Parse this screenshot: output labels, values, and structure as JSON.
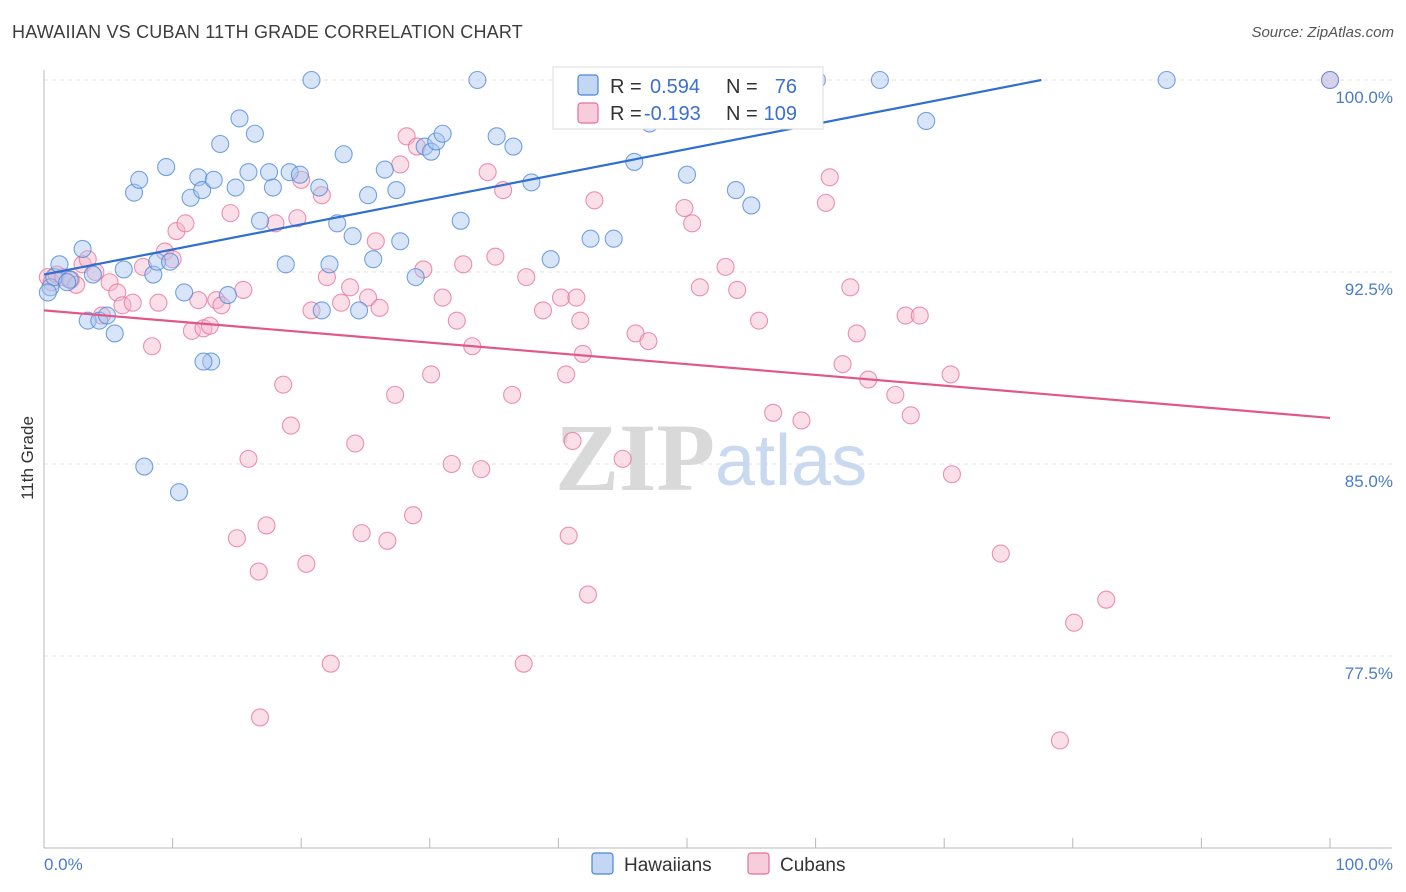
{
  "title": "HAWAIIAN VS CUBAN 11TH GRADE CORRELATION CHART",
  "source": "Source: ZipAtlas.com",
  "watermark": {
    "zip": "ZIP",
    "atlas": "atlas"
  },
  "colors": {
    "hawaiian": "#4a86d8",
    "hawaiian_fill": "#a9c6ef",
    "cuban": "#e56f9a",
    "cuban_fill": "#f5b8cc",
    "axis_text": "#4a7cc9"
  },
  "legend_top": {
    "rows": [
      {
        "r_label": "R =",
        "r_value": "0.594",
        "n_label": "N =",
        "n_value": "76"
      },
      {
        "r_label": "R =",
        "r_value": "-0.193",
        "n_label": "N =",
        "n_value": "109"
      }
    ]
  },
  "legend_bottom": [
    "Hawaiians",
    "Cubans"
  ],
  "chart_data": {
    "type": "scatter",
    "title": "HAWAIIAN VS CUBAN 11TH GRADE CORRELATION CHART",
    "xlabel": "",
    "ylabel": "11th Grade",
    "xlim": [
      0,
      100
    ],
    "ylim": [
      70.0,
      101.4
    ],
    "x_tick_labels": [
      "0.0%",
      "100.0%"
    ],
    "y_ticks": [
      77.5,
      85.0,
      92.5,
      100.0
    ],
    "y_tick_labels": [
      "77.5%",
      "85.0%",
      "92.5%",
      "100.0%"
    ],
    "grid": true,
    "legend_position": "top-center",
    "series": [
      {
        "name": "Hawaiians",
        "R": 0.594,
        "N": 76,
        "trend": [
          [
            0,
            92.4
          ],
          [
            100,
            102.2
          ]
        ],
        "points": [
          [
            0.5,
            91.9
          ],
          [
            0.8,
            92.3
          ],
          [
            1.2,
            92.8
          ],
          [
            2.0,
            92.2
          ],
          [
            3.0,
            93.4
          ],
          [
            3.4,
            90.6
          ],
          [
            3.8,
            92.4
          ],
          [
            4.3,
            90.6
          ],
          [
            4.9,
            90.8
          ],
          [
            5.5,
            90.1
          ],
          [
            6.2,
            92.6
          ],
          [
            7.0,
            95.6
          ],
          [
            7.4,
            96.1
          ],
          [
            7.8,
            84.9
          ],
          [
            8.5,
            92.4
          ],
          [
            8.8,
            92.9
          ],
          [
            9.5,
            96.6
          ],
          [
            9.8,
            92.9
          ],
          [
            10.5,
            83.9
          ],
          [
            10.9,
            91.7
          ],
          [
            11.4,
            95.4
          ],
          [
            12.0,
            96.2
          ],
          [
            12.3,
            95.7
          ],
          [
            13.0,
            89.0
          ],
          [
            13.2,
            96.1
          ],
          [
            13.7,
            97.5
          ],
          [
            14.3,
            91.6
          ],
          [
            14.9,
            95.8
          ],
          [
            15.2,
            98.5
          ],
          [
            15.9,
            96.4
          ],
          [
            16.4,
            97.9
          ],
          [
            16.8,
            94.5
          ],
          [
            17.5,
            96.4
          ],
          [
            17.8,
            95.8
          ],
          [
            18.8,
            92.8
          ],
          [
            19.1,
            96.4
          ],
          [
            19.9,
            96.3
          ],
          [
            20.8,
            100.0
          ],
          [
            21.4,
            95.8
          ],
          [
            21.6,
            91.0
          ],
          [
            22.2,
            92.8
          ],
          [
            22.8,
            94.4
          ],
          [
            23.3,
            97.1
          ],
          [
            24.0,
            93.9
          ],
          [
            24.5,
            91.0
          ],
          [
            25.2,
            95.5
          ],
          [
            25.6,
            93.0
          ],
          [
            26.5,
            96.5
          ],
          [
            27.4,
            95.7
          ],
          [
            27.7,
            93.7
          ],
          [
            28.9,
            92.3
          ],
          [
            29.6,
            97.4
          ],
          [
            30.1,
            97.2
          ],
          [
            30.5,
            97.6
          ],
          [
            31.0,
            97.9
          ],
          [
            32.4,
            94.5
          ],
          [
            33.7,
            100.0
          ],
          [
            35.2,
            97.8
          ],
          [
            36.5,
            97.4
          ],
          [
            37.9,
            96.0
          ],
          [
            39.4,
            93.0
          ],
          [
            42.5,
            93.8
          ],
          [
            44.3,
            93.8
          ],
          [
            45.9,
            96.8
          ],
          [
            47.1,
            98.3
          ],
          [
            50.0,
            96.3
          ],
          [
            53.8,
            95.7
          ],
          [
            55.0,
            95.1
          ],
          [
            60.1,
            100.0
          ],
          [
            65.0,
            100.0
          ],
          [
            68.6,
            98.4
          ],
          [
            87.3,
            100.0
          ],
          [
            100.0,
            100.0
          ],
          [
            0.3,
            91.7
          ],
          [
            1.8,
            92.1
          ],
          [
            12.4,
            89.0
          ]
        ]
      },
      {
        "name": "Cubans",
        "R": -0.193,
        "N": 109,
        "trend": [
          [
            0,
            91.0
          ],
          [
            100,
            86.8
          ]
        ],
        "points": [
          [
            0.3,
            92.3
          ],
          [
            0.6,
            92.1
          ],
          [
            1.0,
            92.4
          ],
          [
            1.5,
            92.3
          ],
          [
            2.1,
            92.2
          ],
          [
            2.5,
            92.0
          ],
          [
            3.0,
            92.8
          ],
          [
            3.4,
            93.0
          ],
          [
            4.0,
            92.5
          ],
          [
            4.5,
            90.8
          ],
          [
            5.1,
            92.1
          ],
          [
            5.7,
            91.7
          ],
          [
            6.1,
            91.2
          ],
          [
            6.9,
            91.3
          ],
          [
            7.7,
            92.7
          ],
          [
            8.4,
            89.6
          ],
          [
            8.9,
            91.3
          ],
          [
            9.4,
            93.3
          ],
          [
            10.0,
            93.0
          ],
          [
            10.3,
            94.1
          ],
          [
            11.0,
            94.4
          ],
          [
            11.5,
            90.2
          ],
          [
            12.0,
            91.4
          ],
          [
            12.4,
            90.3
          ],
          [
            12.9,
            90.4
          ],
          [
            13.4,
            91.4
          ],
          [
            13.8,
            91.2
          ],
          [
            14.5,
            94.8
          ],
          [
            15.0,
            82.1
          ],
          [
            15.5,
            91.8
          ],
          [
            15.9,
            85.2
          ],
          [
            16.7,
            80.8
          ],
          [
            16.8,
            75.1
          ],
          [
            17.3,
            82.6
          ],
          [
            18.0,
            94.4
          ],
          [
            18.6,
            88.1
          ],
          [
            19.2,
            86.5
          ],
          [
            19.7,
            94.6
          ],
          [
            20.0,
            96.1
          ],
          [
            20.4,
            81.1
          ],
          [
            20.8,
            91.0
          ],
          [
            21.6,
            95.5
          ],
          [
            22.0,
            92.3
          ],
          [
            22.3,
            77.2
          ],
          [
            23.1,
            91.3
          ],
          [
            23.8,
            91.9
          ],
          [
            24.2,
            85.8
          ],
          [
            24.7,
            82.3
          ],
          [
            25.2,
            91.5
          ],
          [
            25.8,
            93.7
          ],
          [
            26.1,
            91.1
          ],
          [
            26.7,
            82.0
          ],
          [
            27.3,
            87.7
          ],
          [
            27.7,
            96.7
          ],
          [
            28.2,
            97.8
          ],
          [
            28.7,
            83.0
          ],
          [
            29.0,
            97.4
          ],
          [
            29.5,
            92.6
          ],
          [
            30.1,
            88.5
          ],
          [
            31.0,
            91.5
          ],
          [
            31.7,
            85.0
          ],
          [
            32.1,
            90.6
          ],
          [
            32.6,
            92.8
          ],
          [
            33.3,
            89.6
          ],
          [
            34.0,
            84.8
          ],
          [
            34.5,
            96.4
          ],
          [
            35.1,
            93.1
          ],
          [
            35.7,
            95.7
          ],
          [
            36.4,
            87.7
          ],
          [
            37.3,
            77.2
          ],
          [
            37.5,
            92.3
          ],
          [
            38.8,
            91.0
          ],
          [
            40.2,
            91.5
          ],
          [
            40.6,
            88.5
          ],
          [
            40.8,
            82.2
          ],
          [
            41.1,
            85.9
          ],
          [
            41.4,
            91.5
          ],
          [
            41.7,
            90.6
          ],
          [
            41.9,
            89.3
          ],
          [
            42.3,
            79.9
          ],
          [
            42.8,
            95.3
          ],
          [
            45.0,
            85.2
          ],
          [
            46.0,
            90.1
          ],
          [
            47.0,
            89.8
          ],
          [
            49.8,
            95.0
          ],
          [
            50.4,
            94.4
          ],
          [
            51.0,
            91.9
          ],
          [
            53.0,
            92.7
          ],
          [
            53.9,
            91.8
          ],
          [
            55.6,
            90.6
          ],
          [
            56.7,
            87.0
          ],
          [
            58.9,
            86.7
          ],
          [
            60.8,
            95.2
          ],
          [
            61.1,
            96.2
          ],
          [
            62.1,
            88.9
          ],
          [
            62.7,
            91.9
          ],
          [
            63.2,
            90.1
          ],
          [
            64.1,
            88.3
          ],
          [
            66.2,
            87.7
          ],
          [
            67.0,
            90.8
          ],
          [
            67.4,
            86.9
          ],
          [
            68.1,
            90.8
          ],
          [
            70.5,
            88.5
          ],
          [
            70.6,
            84.6
          ],
          [
            74.4,
            81.5
          ],
          [
            79.0,
            74.2
          ],
          [
            80.1,
            78.8
          ],
          [
            82.6,
            79.7
          ],
          [
            100.0,
            100.0
          ]
        ]
      }
    ]
  }
}
